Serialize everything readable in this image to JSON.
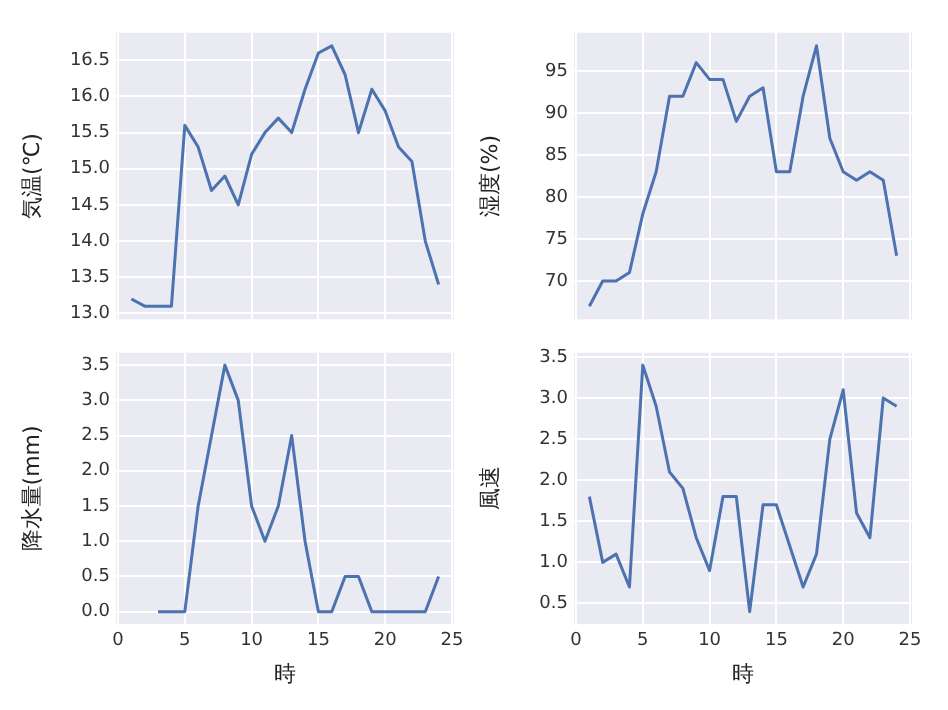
{
  "chart_data": [
    {
      "type": "line",
      "ylabel": "気温(℃)",
      "x": [
        1,
        2,
        3,
        4,
        5,
        6,
        7,
        8,
        9,
        10,
        11,
        12,
        13,
        14,
        15,
        16,
        17,
        18,
        19,
        20,
        21,
        22,
        23,
        24
      ],
      "series": [
        {
          "color": "#4c72b0",
          "values": [
            13.2,
            13.1,
            13.1,
            13.1,
            15.6,
            15.3,
            14.7,
            14.9,
            14.5,
            15.2,
            15.5,
            15.7,
            15.5,
            16.1,
            16.6,
            16.7,
            16.3,
            15.5,
            16.1,
            15.8,
            15.3,
            15.1,
            14.0,
            13.4
          ]
        }
      ],
      "xlim": [
        -0.15,
        25.15
      ],
      "xticks": [
        0,
        5,
        10,
        15,
        20,
        25
      ],
      "ylim": [
        12.92,
        16.88
      ],
      "yticks": [
        {
          "value": 13,
          "label": "13.0"
        },
        13.5,
        {
          "value": 14,
          "label": "14.0"
        },
        14.5,
        {
          "value": 15,
          "label": "15.0"
        },
        15.5,
        {
          "value": 16,
          "label": "16.0"
        },
        16.5
      ],
      "grid": true,
      "tick_labels": "y"
    },
    {
      "type": "line",
      "ylabel": "湿度(%)",
      "x": [
        1,
        2,
        3,
        4,
        5,
        6,
        7,
        8,
        9,
        10,
        11,
        12,
        13,
        14,
        15,
        16,
        17,
        18,
        19,
        20,
        21,
        22,
        23,
        24
      ],
      "series": [
        {
          "color": "#4c72b0",
          "values": [
            67,
            70,
            70,
            71,
            78,
            83,
            92,
            92,
            96,
            94,
            94,
            89,
            92,
            93,
            83,
            83,
            92,
            98,
            87,
            83,
            82,
            83,
            82,
            73
          ]
        }
      ],
      "xlim": [
        -0.15,
        25.15
      ],
      "xticks": [
        0,
        5,
        10,
        15,
        20,
        25
      ],
      "ylim": [
        65.45,
        99.55
      ],
      "yticks": [
        70,
        75,
        80,
        85,
        90,
        95
      ],
      "grid": true,
      "tick_labels": "y"
    },
    {
      "type": "line",
      "xlabel": "時",
      "ylabel": "降水量(mm)",
      "x": [
        3,
        4,
        5,
        6,
        7,
        8,
        9,
        10,
        11,
        12,
        13,
        14,
        15,
        16,
        17,
        18,
        19,
        20,
        21,
        22,
        23,
        24
      ],
      "series": [
        {
          "color": "#4c72b0",
          "values": [
            0,
            0,
            0,
            1.5,
            2.5,
            3.5,
            3.0,
            1.5,
            1.0,
            1.5,
            2.5,
            1.0,
            0,
            0,
            0.5,
            0.5,
            0,
            0,
            0,
            0,
            0,
            0.5
          ]
        }
      ],
      "xlim": [
        -0.15,
        25.15
      ],
      "xticks": [
        0,
        5,
        10,
        15,
        20,
        25
      ],
      "ylim": [
        -0.175,
        3.675
      ],
      "yticks": [
        {
          "value": 0,
          "label": "0.0"
        },
        0.5,
        {
          "value": 1,
          "label": "1.0"
        },
        1.5,
        {
          "value": 2,
          "label": "2.0"
        },
        2.5,
        {
          "value": 3,
          "label": "3.0"
        },
        3.5
      ],
      "grid": true
    },
    {
      "type": "line",
      "xlabel": "時",
      "ylabel": "風速",
      "x": [
        1,
        2,
        3,
        4,
        5,
        6,
        7,
        8,
        9,
        10,
        11,
        12,
        13,
        14,
        15,
        16,
        17,
        18,
        19,
        20,
        21,
        22,
        23,
        24
      ],
      "series": [
        {
          "color": "#4c72b0",
          "values": [
            1.8,
            1.0,
            1.1,
            0.7,
            3.4,
            2.9,
            2.1,
            1.9,
            1.3,
            0.9,
            1.8,
            1.8,
            0.4,
            1.7,
            1.7,
            1.2,
            0.7,
            1.1,
            2.5,
            3.1,
            1.6,
            1.3,
            3.0,
            2.9
          ]
        }
      ],
      "xlim": [
        -0.15,
        25.15
      ],
      "xticks": [
        0,
        5,
        10,
        15,
        20,
        25
      ],
      "ylim": [
        0.25,
        3.55
      ],
      "yticks": [
        0.5,
        {
          "value": 1,
          "label": "1.0"
        },
        1.5,
        {
          "value": 2,
          "label": "2.0"
        },
        2.5,
        {
          "value": 3,
          "label": "3.0"
        },
        3.5
      ],
      "grid": true
    }
  ]
}
